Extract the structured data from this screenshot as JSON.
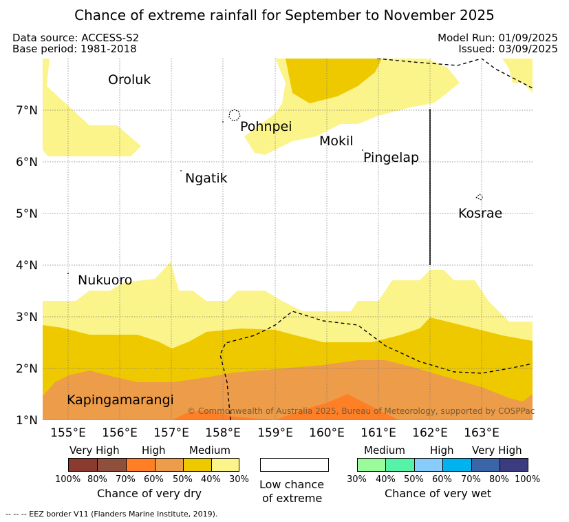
{
  "title": "Chance of extreme rainfall for September to November 2025",
  "header": {
    "data_source": "Data source: ACCESS-S2",
    "base_period": "Base period: 1981-2018",
    "model_run": "Model Run: 01/09/2025",
    "issued": "Issued: 03/09/2025"
  },
  "map": {
    "lat_labels": [
      "7°N",
      "6°N",
      "5°N",
      "4°N",
      "3°N",
      "2°N",
      "1°N"
    ],
    "lon_labels": [
      "155°E",
      "156°E",
      "157°E",
      "158°E",
      "159°E",
      "160°E",
      "161°E",
      "162°E",
      "163°E"
    ],
    "places": [
      "Oroluk",
      "Pohnpei",
      "Mokil",
      "Pingelap",
      "Ngatik",
      "Kosrae",
      "Nukuoro",
      "Kapingamarangi"
    ],
    "copyright": "© Commonwealth of Australia 2025, Bureau of Meteorology, supported by COSPPac"
  },
  "legend": {
    "dry": {
      "headers": [
        "Very High",
        "High",
        "Medium"
      ],
      "ticks": [
        "100%",
        "80%",
        "70%",
        "60%",
        "50%",
        "40%",
        "30%"
      ],
      "colors": [
        "#8b3a2f",
        "#8e4f3c",
        "#ff7f27",
        "#ed9c49",
        "#eec900",
        "#fbf48a"
      ],
      "caption": "Chance of very dry"
    },
    "low": {
      "caption_line1": "Low chance",
      "caption_line2": "of extreme"
    },
    "wet": {
      "headers": [
        "Medium",
        "High",
        "Very High"
      ],
      "ticks": [
        "30%",
        "40%",
        "50%",
        "60%",
        "70%",
        "80%",
        "100%"
      ],
      "colors": [
        "#9bfb9b",
        "#55f2a7",
        "#87ccfa",
        "#00b2ee",
        "#3a66a8",
        "#3b3b80"
      ],
      "caption": "Chance of very wet"
    }
  },
  "eez_note": "--  --  -- EEZ border V11 (Flanders Marine Institute, 2019)."
}
